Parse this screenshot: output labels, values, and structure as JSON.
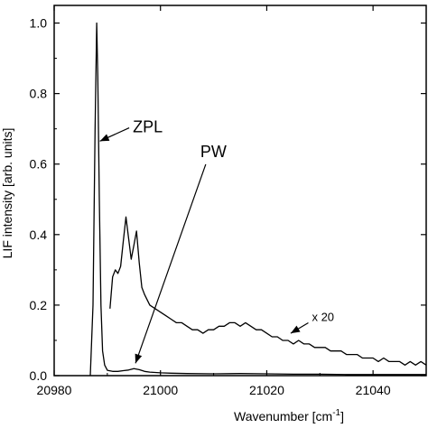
{
  "chart_data": {
    "type": "line",
    "xlabel": "Wavenumber [cm",
    "xlabel_sup": "-1",
    "xlabel_close": "]",
    "ylabel": "LIF intensity [arb. units]",
    "xlim": [
      20980,
      21050
    ],
    "ylim": [
      0,
      1.05
    ],
    "x_ticks": [
      20980,
      21000,
      21020,
      21040
    ],
    "x_tick_labels": [
      "20980",
      "21000",
      "21020",
      "21040"
    ],
    "y_ticks": [
      0,
      0.2,
      0.4,
      0.6,
      0.8,
      1.0
    ],
    "y_tick_labels": [
      "0.0",
      "0.2",
      "0.4",
      "0.6",
      "0.8",
      "1.0"
    ],
    "grid": false,
    "series": [
      {
        "values_x": [
          20986.8,
          20987.3,
          20987.7,
          20988.0,
          20988.2,
          20988.5,
          20988.8,
          20989.1,
          20989.5,
          20990.0,
          20991.0,
          20992.0,
          20993.0,
          20994.0,
          20995.0,
          20996.0,
          20997.0,
          20998.0,
          21000.0,
          21002.0,
          21005.0,
          21010.0,
          21015.0,
          21020.0,
          21025.0,
          21030.0,
          21035.0,
          21040.0,
          21045.0,
          21050.0
        ],
        "values_y": [
          0.0,
          0.2,
          0.7,
          1.0,
          0.85,
          0.5,
          0.2,
          0.07,
          0.03,
          0.015,
          0.012,
          0.012,
          0.014,
          0.016,
          0.02,
          0.017,
          0.012,
          0.01,
          0.008,
          0.007,
          0.006,
          0.005,
          0.006,
          0.005,
          0.004,
          0.004,
          0.003,
          0.003,
          0.003,
          0.003
        ]
      },
      {
        "values_x": [
          20990.5,
          20991.0,
          20991.5,
          20992.0,
          20992.5,
          20993.0,
          20993.5,
          20994.0,
          20994.5,
          20995.0,
          20995.5,
          20996.0,
          20996.5,
          20997.0,
          20998.0,
          20999.0,
          21000.0,
          21001.0,
          21002.0,
          21003.0,
          21004.0,
          21005.0,
          21006.0,
          21007.0,
          21008.0,
          21009.0,
          21010.0,
          21011.0,
          21012.0,
          21013.0,
          21014.0,
          21015.0,
          21016.0,
          21017.0,
          21018.0,
          21019.0,
          21020.0,
          21021.0,
          21022.0,
          21023.0,
          21024.0,
          21025.0,
          21026.0,
          21027.0,
          21028.0,
          21029.0,
          21030.0,
          21031.0,
          21032.0,
          21033.0,
          21034.0,
          21035.0,
          21036.0,
          21037.0,
          21038.0,
          21039.0,
          21040.0,
          21041.0,
          21042.0,
          21043.0,
          21044.0,
          21045.0,
          21046.0,
          21047.0,
          21048.0,
          21049.0,
          21050.0
        ],
        "values_y": [
          0.19,
          0.28,
          0.3,
          0.29,
          0.31,
          0.38,
          0.45,
          0.39,
          0.33,
          0.37,
          0.41,
          0.32,
          0.25,
          0.23,
          0.2,
          0.19,
          0.18,
          0.17,
          0.16,
          0.15,
          0.15,
          0.14,
          0.13,
          0.13,
          0.12,
          0.13,
          0.13,
          0.14,
          0.14,
          0.15,
          0.15,
          0.14,
          0.15,
          0.14,
          0.13,
          0.13,
          0.12,
          0.11,
          0.11,
          0.1,
          0.1,
          0.09,
          0.1,
          0.09,
          0.09,
          0.08,
          0.08,
          0.08,
          0.07,
          0.07,
          0.07,
          0.06,
          0.06,
          0.06,
          0.05,
          0.05,
          0.05,
          0.04,
          0.05,
          0.04,
          0.04,
          0.04,
          0.03,
          0.04,
          0.03,
          0.04,
          0.03
        ]
      }
    ],
    "annotations": [
      {
        "text": "ZPL",
        "x": 20994.8,
        "y": 0.69,
        "arrow_to": [
          20988.6,
          0.665
        ]
      },
      {
        "text": "PW",
        "x": 21007.5,
        "y": 0.62,
        "arrow_to": [
          20995.3,
          0.035
        ]
      },
      {
        "text": "x 20",
        "x": 21028.5,
        "y": 0.155,
        "arrow_to": [
          21024.5,
          0.12
        ]
      }
    ]
  }
}
